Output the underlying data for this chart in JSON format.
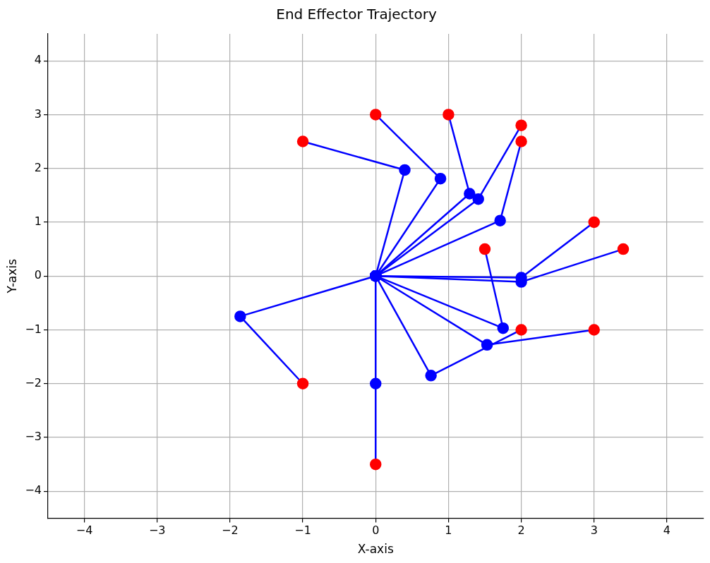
{
  "chart_data": {
    "type": "line",
    "title": "End Effector Trajectory",
    "xlabel": "X-axis",
    "ylabel": "Y-axis",
    "xlim": [
      -4.5,
      4.5
    ],
    "ylim": [
      -4.5,
      4.5
    ],
    "xticks": [
      -4,
      -3,
      -2,
      -1,
      0,
      1,
      2,
      3,
      4
    ],
    "yticks": [
      -4,
      -3,
      -2,
      -1,
      0,
      1,
      2,
      3,
      4
    ],
    "grid": true,
    "legend": false,
    "marker": "circle",
    "line_style": "solid",
    "series": [
      {
        "color": "#0000ff",
        "x": [
          0,
          0.4,
          -1
        ],
        "values": [
          0,
          1.97,
          2.5
        ],
        "colors": [
          "#0000ff",
          "#0000ff",
          "#ff0000"
        ]
      },
      {
        "color": "#0000ff",
        "x": [
          0,
          0.89,
          0
        ],
        "values": [
          0,
          1.81,
          3
        ],
        "colors": [
          "#0000ff",
          "#0000ff",
          "#ff0000"
        ]
      },
      {
        "color": "#0000ff",
        "x": [
          0,
          1.29,
          1
        ],
        "values": [
          0,
          1.53,
          3
        ],
        "colors": [
          "#0000ff",
          "#0000ff",
          "#ff0000"
        ]
      },
      {
        "color": "#0000ff",
        "x": [
          0,
          1.41,
          2
        ],
        "values": [
          0,
          1.43,
          2.8
        ],
        "colors": [
          "#0000ff",
          "#0000ff",
          "#ff0000"
        ]
      },
      {
        "color": "#0000ff",
        "x": [
          0,
          1.71,
          2
        ],
        "values": [
          0,
          1.03,
          2.5
        ],
        "colors": [
          "#0000ff",
          "#0000ff",
          "#ff0000"
        ]
      },
      {
        "color": "#0000ff",
        "x": [
          0,
          2,
          3
        ],
        "values": [
          0,
          -0.03,
          1
        ],
        "colors": [
          "#0000ff",
          "#0000ff",
          "#ff0000"
        ]
      },
      {
        "color": "#0000ff",
        "x": [
          0,
          2,
          3.4
        ],
        "values": [
          0,
          -0.11,
          0.5
        ],
        "colors": [
          "#0000ff",
          "#0000ff",
          "#ff0000"
        ]
      },
      {
        "color": "#0000ff",
        "x": [
          0,
          1.75,
          1.5
        ],
        "values": [
          0,
          -0.97,
          0.5
        ],
        "colors": [
          "#0000ff",
          "#0000ff",
          "#ff0000"
        ]
      },
      {
        "color": "#0000ff",
        "x": [
          0,
          1.53,
          3
        ],
        "values": [
          0,
          -1.28,
          -1
        ],
        "colors": [
          "#0000ff",
          "#0000ff",
          "#ff0000"
        ]
      },
      {
        "color": "#0000ff",
        "x": [
          0,
          0.76,
          2
        ],
        "values": [
          0,
          -1.85,
          -1
        ],
        "colors": [
          "#0000ff",
          "#0000ff",
          "#ff0000"
        ]
      },
      {
        "color": "#0000ff",
        "x": [
          0,
          -1.86,
          -1
        ],
        "values": [
          0,
          -0.75,
          -2
        ],
        "colors": [
          "#0000ff",
          "#0000ff",
          "#ff0000"
        ]
      },
      {
        "color": "#0000ff",
        "x": [
          0,
          0,
          0
        ],
        "values": [
          0,
          -2,
          -3.5
        ],
        "colors": [
          "#0000ff",
          "#0000ff",
          "#ff0000"
        ]
      }
    ]
  }
}
